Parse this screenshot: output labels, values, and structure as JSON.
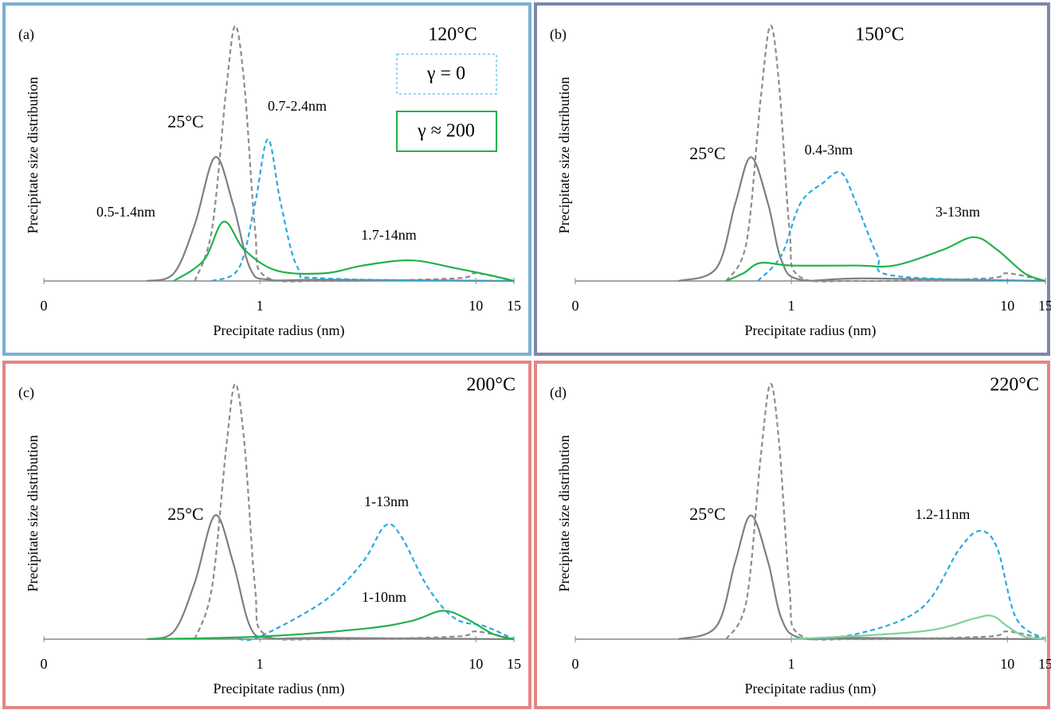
{
  "chart_data": [
    {
      "type": "line",
      "panel_label": "(a)",
      "title": "120°C",
      "title_color": "#2e75b6",
      "border_color": "#7bafd4",
      "xlabel": "Precipitate radius (nm)",
      "ylabel": "Precipitate size distribution",
      "xscale": "log",
      "xlim": [
        0.1,
        15
      ],
      "xticks": [
        {
          "value": 0.1,
          "label": "0"
        },
        1,
        10,
        15
      ],
      "ylim": [
        0,
        1
      ],
      "series": [
        {
          "color": "#7f7f7f",
          "dashed": false,
          "x": [
            0.3,
            0.4,
            0.5,
            0.62,
            0.75,
            0.9,
            1.1,
            2,
            15
          ],
          "values": [
            0,
            0.03,
            0.22,
            0.48,
            0.3,
            0.05,
            0.005,
            0.005,
            0
          ]
        },
        {
          "color": "#8c8c8c",
          "dashed": true,
          "x": [
            0.5,
            0.6,
            0.7,
            0.77,
            0.85,
            0.95,
            1.05,
            2,
            8,
            10,
            15
          ],
          "values": [
            0,
            0.2,
            0.75,
            0.99,
            0.75,
            0.2,
            0.02,
            0,
            0.01,
            0.03,
            0
          ]
        },
        {
          "name": "γ = 0",
          "color": "#29a9e0",
          "dashed": true,
          "x": [
            0.6,
            0.8,
            0.95,
            1.09,
            1.25,
            1.5,
            2,
            15
          ],
          "values": [
            0,
            0.05,
            0.3,
            0.55,
            0.3,
            0.05,
            0.01,
            0
          ]
        },
        {
          "name": "γ ≈ 200",
          "color": "#22b14c",
          "dashed": false,
          "x": [
            0.4,
            0.55,
            0.68,
            0.85,
            1.2,
            2,
            3,
            5,
            8,
            12,
            15
          ],
          "values": [
            0,
            0.08,
            0.23,
            0.12,
            0.04,
            0.03,
            0.06,
            0.08,
            0.05,
            0.02,
            0
          ]
        }
      ],
      "annotations": [
        {
          "text": "25°C",
          "color": "#7f7f7f"
        },
        {
          "text": "0.7-2.4nm",
          "color": "#29a9e0"
        },
        {
          "text": "0.5-1.4nm",
          "color": "#22b14c"
        },
        {
          "text": "1.7-14nm",
          "color": "#22b14c"
        }
      ]
    },
    {
      "type": "line",
      "panel_label": "(b)",
      "title": "150°C",
      "title_color": "#1f2f6b",
      "border_color": "#7d87a6",
      "xlabel": "Precipitate radius (nm)",
      "ylabel": "Precipitate size distribution",
      "xscale": "log",
      "xlim": [
        0.1,
        15
      ],
      "xticks": [
        {
          "value": 0.1,
          "label": "0"
        },
        1,
        10,
        15
      ],
      "ylim": [
        0,
        1
      ],
      "series": [
        {
          "color": "#7f7f7f",
          "dashed": false,
          "x": [
            0.3,
            0.45,
            0.55,
            0.65,
            0.78,
            0.9,
            1.1,
            2.2,
            15
          ],
          "values": [
            0,
            0.05,
            0.3,
            0.48,
            0.3,
            0.08,
            0.005,
            0.01,
            0
          ]
        },
        {
          "color": "#8c8c8c",
          "dashed": true,
          "x": [
            0.5,
            0.62,
            0.72,
            0.8,
            0.88,
            0.98,
            1.08,
            2,
            8,
            10,
            15
          ],
          "values": [
            0,
            0.15,
            0.7,
            0.99,
            0.75,
            0.2,
            0.02,
            0,
            0.01,
            0.03,
            0
          ]
        },
        {
          "color": "#29a9e0",
          "dashed": true,
          "x": [
            0.7,
            0.9,
            1.1,
            1.4,
            1.7,
            2,
            2.5,
            3,
            15
          ],
          "values": [
            0,
            0.1,
            0.3,
            0.38,
            0.42,
            0.3,
            0.1,
            0.02,
            0
          ]
        },
        {
          "color": "#22b14c",
          "dashed": false,
          "x": [
            0.5,
            0.6,
            0.72,
            1,
            2,
            3,
            5,
            7,
            9,
            12,
            15
          ],
          "values": [
            0,
            0.03,
            0.07,
            0.06,
            0.06,
            0.06,
            0.12,
            0.17,
            0.12,
            0.03,
            0
          ]
        }
      ],
      "annotations": [
        {
          "text": "25°C",
          "color": "#7f7f7f"
        },
        {
          "text": "0.4-3nm",
          "color": "#29a9e0"
        },
        {
          "text": "3-13nm",
          "color": "#22b14c"
        }
      ]
    },
    {
      "type": "line",
      "panel_label": "(c)",
      "title": "200°C",
      "title_color": "#c00000",
      "border_color": "#e48585",
      "xlabel": "Precipitate radius (nm)",
      "ylabel": "Precipitate size distribution",
      "xscale": "log",
      "xlim": [
        0.1,
        15
      ],
      "xticks": [
        {
          "value": 0.1,
          "label": "0"
        },
        1,
        10,
        15
      ],
      "ylim": [
        0,
        1
      ],
      "series": [
        {
          "color": "#7f7f7f",
          "dashed": false,
          "x": [
            0.3,
            0.4,
            0.5,
            0.62,
            0.75,
            0.9,
            1.1,
            2,
            15
          ],
          "values": [
            0,
            0.03,
            0.22,
            0.48,
            0.3,
            0.05,
            0.005,
            0.005,
            0
          ]
        },
        {
          "color": "#8c8c8c",
          "dashed": true,
          "x": [
            0.5,
            0.6,
            0.7,
            0.77,
            0.85,
            0.95,
            1.05,
            2,
            8,
            10,
            15
          ],
          "values": [
            0,
            0.2,
            0.75,
            0.99,
            0.75,
            0.2,
            0.02,
            0,
            0.01,
            0.03,
            0
          ]
        },
        {
          "color": "#29a9e0",
          "dashed": true,
          "x": [
            0.8,
            1,
            2,
            3,
            3.8,
            4.5,
            6,
            8,
            11,
            15
          ],
          "values": [
            0,
            0.01,
            0.15,
            0.3,
            0.44,
            0.4,
            0.2,
            0.08,
            0.05,
            0
          ]
        },
        {
          "color": "#22b14c",
          "dashed": false,
          "x": [
            0.3,
            1,
            3,
            5,
            7,
            9,
            12,
            15
          ],
          "values": [
            0,
            0.01,
            0.04,
            0.07,
            0.11,
            0.08,
            0.02,
            0
          ]
        }
      ],
      "annotations": [
        {
          "text": "25°C",
          "color": "#7f7f7f"
        },
        {
          "text": "1-13nm",
          "color": "#29a9e0"
        },
        {
          "text": "1-10nm",
          "color": "#22b14c"
        }
      ]
    },
    {
      "type": "line",
      "panel_label": "(d)",
      "title": "220°C",
      "title_color": "#ff0000",
      "border_color": "#e48585",
      "xlabel": "Precipitate radius (nm)",
      "ylabel": "Precipitate size distribution",
      "xscale": "log",
      "xlim": [
        0.1,
        15
      ],
      "xticks": [
        {
          "value": 0.1,
          "label": "0"
        },
        1,
        10,
        15
      ],
      "ylim": [
        0,
        1
      ],
      "series": [
        {
          "color": "#7f7f7f",
          "dashed": false,
          "x": [
            0.3,
            0.45,
            0.55,
            0.65,
            0.78,
            0.9,
            1.1,
            2,
            15
          ],
          "values": [
            0,
            0.05,
            0.3,
            0.48,
            0.3,
            0.08,
            0.005,
            0.005,
            0
          ]
        },
        {
          "color": "#8c8c8c",
          "dashed": true,
          "x": [
            0.5,
            0.62,
            0.72,
            0.8,
            0.88,
            0.98,
            1.08,
            2,
            8,
            10,
            15
          ],
          "values": [
            0,
            0.15,
            0.7,
            0.99,
            0.75,
            0.2,
            0.02,
            0,
            0.01,
            0.03,
            0
          ]
        },
        {
          "color": "#29a9e0",
          "dashed": true,
          "x": [
            1,
            2,
            4,
            6,
            7.5,
            9,
            11,
            15
          ],
          "values": [
            0,
            0.02,
            0.12,
            0.35,
            0.42,
            0.35,
            0.08,
            0
          ]
        },
        {
          "color": "#7fd39a",
          "dashed": false,
          "x": [
            1,
            4,
            7,
            8.5,
            10,
            12,
            15
          ],
          "values": [
            0,
            0.03,
            0.08,
            0.09,
            0.05,
            0.01,
            0
          ]
        }
      ],
      "annotations": [
        {
          "text": "25°C",
          "color": "#7f7f7f"
        },
        {
          "text": "1.2-11nm",
          "color": "#000000"
        }
      ]
    }
  ]
}
